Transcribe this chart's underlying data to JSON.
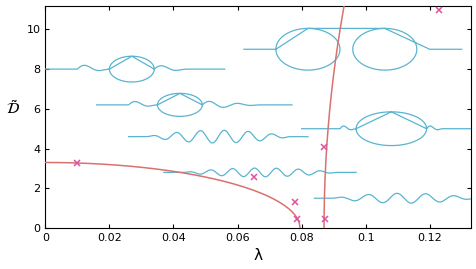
{
  "xlim": [
    0,
    0.133
  ],
  "ylim": [
    0,
    11.2
  ],
  "xlabel": "λ",
  "red_color": "#d9716e",
  "blue_color": "#5ab4d0",
  "pink_color": "#e050a0",
  "xtick_vals": [
    0,
    0.02,
    0.04,
    0.06,
    0.08,
    0.1,
    0.12
  ],
  "ytick_vals": [
    0,
    2,
    4,
    6,
    8,
    10
  ],
  "figsize": [
    4.77,
    2.69
  ],
  "dpi": 100
}
